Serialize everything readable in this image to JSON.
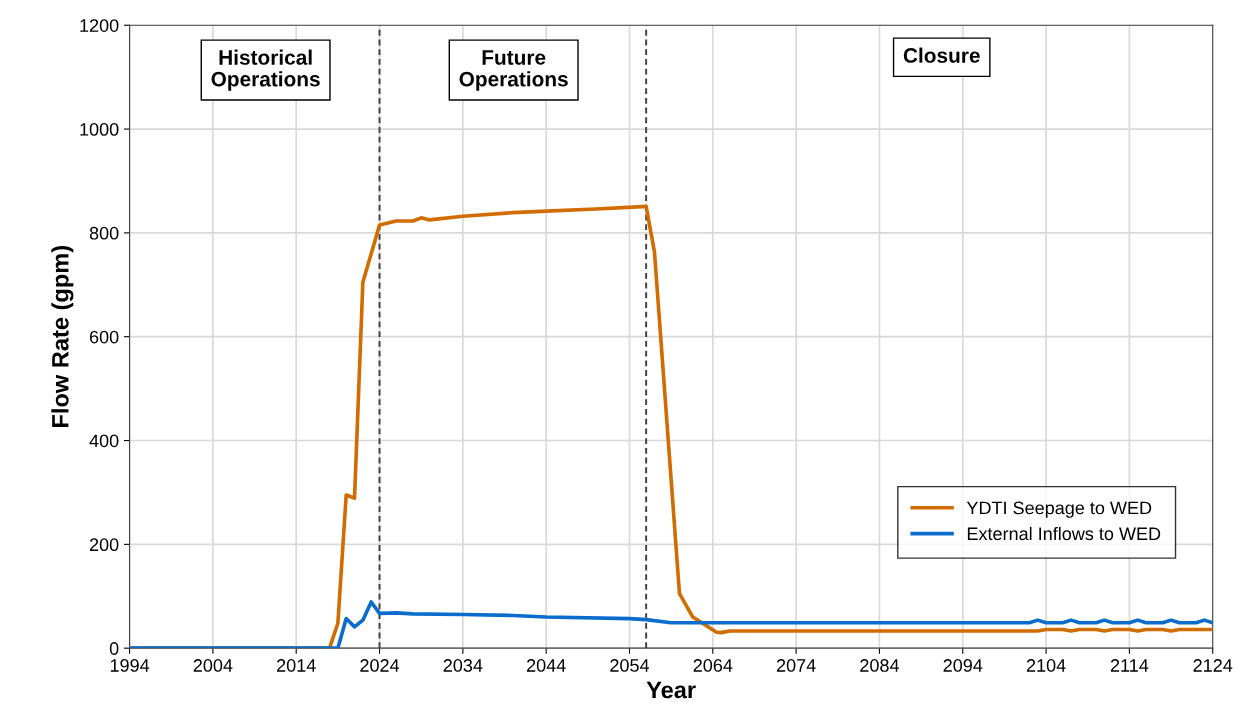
{
  "chart_data": {
    "type": "line",
    "xlabel": "Year",
    "ylabel": "Flow Rate (gpm)",
    "xlim": [
      1994,
      2124
    ],
    "xticks": [
      1994,
      2004,
      2014,
      2024,
      2034,
      2044,
      2054,
      2064,
      2074,
      2084,
      2094,
      2104,
      2114,
      2124
    ],
    "ylim": [
      0,
      1200
    ],
    "yticks": [
      0,
      200,
      400,
      600,
      800,
      1000,
      1200
    ],
    "grid": true,
    "legend": "bottom right",
    "line_style": "solid",
    "marker": "none",
    "series": [
      {
        "name": "YDTI Seepage to WED",
        "color": "#d26c00",
        "x": [
          1994,
          2018,
          2019,
          2020,
          2021,
          2022,
          2023,
          2024,
          2026,
          2028,
          2029,
          2030,
          2034,
          2040,
          2044,
          2050,
          2055,
          2056,
          2057,
          2060,
          2061.6,
          2064.4,
          2065,
          2066,
          2103,
          2104,
          2106,
          2107,
          2108,
          2110,
          2111,
          2112,
          2114,
          2115,
          2116,
          2118,
          2119,
          2120,
          2124
        ],
        "values": [
          0,
          0,
          48,
          295,
          289,
          705,
          760,
          815,
          823,
          823,
          829,
          825,
          832,
          839,
          842,
          846,
          850,
          851,
          763,
          105,
          60,
          31,
          30,
          33,
          33,
          36,
          36,
          33,
          36,
          36,
          33,
          36,
          36,
          33,
          36,
          36,
          33,
          36,
          36
        ]
      },
      {
        "name": "External Inflows to WED",
        "color": "#0a6ccc",
        "x": [
          1994,
          2019,
          2020,
          2021,
          2022,
          2023,
          2024,
          2026,
          2028,
          2034,
          2040,
          2044,
          2054,
          2056,
          2059,
          2102,
          2103,
          2104,
          2106,
          2107,
          2108,
          2110,
          2111,
          2112,
          2114,
          2115,
          2116,
          2118,
          2119,
          2120,
          2122,
          2123,
          2124
        ],
        "values": [
          0,
          0,
          57,
          41,
          54,
          89,
          67,
          68,
          66,
          65,
          63,
          60,
          57,
          55,
          49,
          49,
          54,
          49,
          49,
          54,
          49,
          49,
          54,
          49,
          49,
          54,
          49,
          49,
          54,
          49,
          49,
          54,
          49
        ]
      }
    ],
    "ref_lines": [
      {
        "axis": "x",
        "value": 2024,
        "color": "#404040",
        "line_style": "dashed"
      },
      {
        "axis": "x",
        "value": 2056,
        "color": "#404040",
        "line_style": "dashed"
      }
    ],
    "annotations": [
      "Historical\nOperations",
      "Future\nOperations",
      "Closure"
    ]
  }
}
